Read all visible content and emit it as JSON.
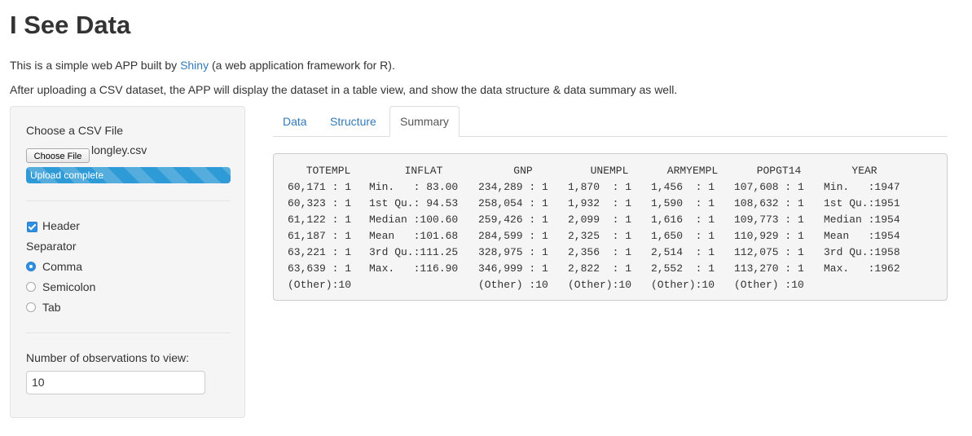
{
  "page": {
    "title": "I See Data",
    "intro_prefix": "This is a simple web APP built by ",
    "intro_link": "Shiny",
    "intro_suffix": " (a web application framework for R).",
    "description": "After uploading a CSV dataset, the APP will display the dataset in a table view, and show the data structure & data summary as well."
  },
  "sidebar": {
    "file_label": "Choose a CSV File",
    "file_button": "Choose File",
    "file_name": "longley.csv",
    "upload_status": "Upload complete",
    "upload_progress": 1.0,
    "header_label": "Header",
    "header_checked": true,
    "separator_label": "Separator",
    "separator_options": [
      {
        "label": "Comma",
        "checked": true
      },
      {
        "label": "Semicolon",
        "checked": false
      },
      {
        "label": "Tab",
        "checked": false
      }
    ],
    "obs_label": "Number of observations to view:",
    "obs_value": "10"
  },
  "tabs": {
    "data": "Data",
    "structure": "Structure",
    "summary": "Summary",
    "active": "summary"
  },
  "summary": {
    "headers": [
      "TOTEMPL",
      "INFLAT",
      "GNP",
      "UNEMPL",
      "ARMYEMPL",
      "POPGT14",
      "YEAR"
    ],
    "rows": [
      [
        "60,171 : 1",
        "Min.   : 83.00",
        "234,289 : 1",
        "1,870  : 1",
        "1,456  : 1",
        "107,608 : 1",
        "Min.   :1947"
      ],
      [
        "60,323 : 1",
        "1st Qu.: 94.53",
        "258,054 : 1",
        "1,932  : 1",
        "1,590  : 1",
        "108,632 : 1",
        "1st Qu.:1951"
      ],
      [
        "61,122 : 1",
        "Median :100.60",
        "259,426 : 1",
        "2,099  : 1",
        "1,616  : 1",
        "109,773 : 1",
        "Median :1954"
      ],
      [
        "61,187 : 1",
        "Mean   :101.68",
        "284,599 : 1",
        "2,325  : 1",
        "1,650  : 1",
        "110,929 : 1",
        "Mean   :1954"
      ],
      [
        "63,221 : 1",
        "3rd Qu.:111.25",
        "328,975 : 1",
        "2,356  : 1",
        "2,514  : 1",
        "112,075 : 1",
        "3rd Qu.:1958"
      ],
      [
        "63,639 : 1",
        "Max.   :116.90",
        "346,999 : 1",
        "2,822  : 1",
        "2,552  : 1",
        "113,270 : 1",
        "Max.   :1962"
      ],
      [
        "(Other):10",
        "",
        "(Other) :10",
        "(Other):10",
        "(Other):10",
        "(Other) :10",
        ""
      ]
    ]
  },
  "colors": {
    "link": "#337ab7",
    "accent": "#2f8fe0",
    "progress": "#2f9bd6"
  }
}
